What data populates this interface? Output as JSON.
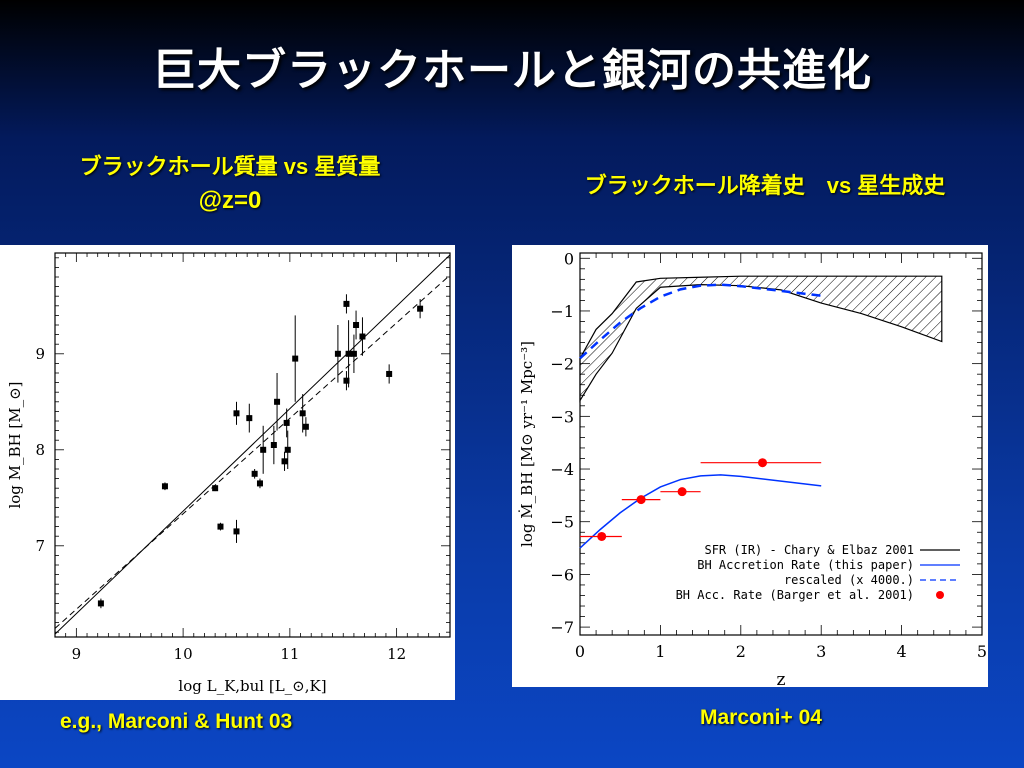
{
  "slide": {
    "title": "巨大ブラックホールと銀河の共進化",
    "left_subtitle_line1": "ブラックホール質量 vs 星質量",
    "left_subtitle_line2": "@z=0",
    "right_subtitle": "ブラックホール降着史　vs 星生成史",
    "left_caption": "e.g., Marconi & Hunt 03",
    "right_caption": "Marconi+ 04"
  },
  "chart_data": [
    {
      "type": "scatter",
      "xlabel": "log L_K,bul [L_⊙,K]",
      "ylabel": "log M_BH [M_⊙]",
      "xlim": [
        8.8,
        12.5
      ],
      "ylim": [
        6.05,
        10.05
      ],
      "xticks": [
        "9",
        "10",
        "11",
        "12"
      ],
      "yticks": [
        "7",
        "8",
        "9"
      ],
      "grid": false,
      "points": [
        {
          "x": 9.23,
          "y": 6.4,
          "yerr": 0.05
        },
        {
          "x": 9.83,
          "y": 7.62,
          "yerr": 0.04
        },
        {
          "x": 10.3,
          "y": 7.6,
          "yerr": 0.03
        },
        {
          "x": 10.35,
          "y": 7.2,
          "yerr": 0.04
        },
        {
          "x": 10.5,
          "y": 8.38,
          "yerr": 0.12
        },
        {
          "x": 10.5,
          "y": 7.15,
          "yerr": 0.12
        },
        {
          "x": 10.62,
          "y": 8.33,
          "yerr": 0.15
        },
        {
          "x": 10.67,
          "y": 7.75,
          "yerr": 0.05
        },
        {
          "x": 10.72,
          "y": 7.65,
          "yerr": 0.05
        },
        {
          "x": 10.75,
          "y": 8.0,
          "yerr": 0.25
        },
        {
          "x": 10.85,
          "y": 8.05,
          "yerr": 0.2
        },
        {
          "x": 10.88,
          "y": 8.5,
          "yerr": 0.3
        },
        {
          "x": 10.95,
          "y": 7.88,
          "yerr": 0.1
        },
        {
          "x": 10.97,
          "y": 8.28,
          "yerr": 0.15
        },
        {
          "x": 10.98,
          "y": 8.0,
          "yerr": 0.2
        },
        {
          "x": 11.05,
          "y": 8.95,
          "yerr": 0.45
        },
        {
          "x": 11.12,
          "y": 8.38,
          "yerr": 0.2
        },
        {
          "x": 11.15,
          "y": 8.24,
          "yerr": 0.1
        },
        {
          "x": 11.45,
          "y": 9.0,
          "yerr": 0.3
        },
        {
          "x": 11.53,
          "y": 9.52,
          "yerr": 0.1
        },
        {
          "x": 11.53,
          "y": 8.72,
          "yerr": 0.1
        },
        {
          "x": 11.55,
          "y": 9.0,
          "yerr": 0.35
        },
        {
          "x": 11.6,
          "y": 9.0,
          "yerr": 0.2
        },
        {
          "x": 11.62,
          "y": 9.3,
          "yerr": 0.15
        },
        {
          "x": 11.68,
          "y": 9.18,
          "yerr": 0.2
        },
        {
          "x": 11.93,
          "y": 8.79,
          "yerr": 0.1
        },
        {
          "x": 12.22,
          "y": 9.47,
          "yerr": 0.1
        }
      ],
      "lines": [
        {
          "style": "solid",
          "x": [
            8.8,
            12.5
          ],
          "y": [
            6.08,
            10.03
          ]
        },
        {
          "style": "dashed",
          "x": [
            8.8,
            12.5
          ],
          "y": [
            6.14,
            9.82
          ]
        }
      ]
    },
    {
      "type": "line",
      "xlabel": "z",
      "ylabel": "log Ṁ_BH [M⊙ yr⁻¹ Mpc⁻³]",
      "xlim": [
        0,
        5
      ],
      "ylim": [
        -7.15,
        0.1
      ],
      "xticks": [
        "0",
        "1",
        "2",
        "3",
        "4",
        "5"
      ],
      "yticks": [
        "0",
        "−1",
        "−2",
        "−3",
        "−4",
        "−5",
        "−6",
        "−7"
      ],
      "series": [
        {
          "name": "SFR (IR) - Chary & Elbaz 2001",
          "style": "hatched band",
          "x": [
            0,
            0.2,
            0.4,
            0.7,
            1.0,
            1.5,
            2.0,
            2.5,
            3.0,
            3.5,
            4.0,
            4.5
          ],
          "upper": [
            -1.9,
            -1.35,
            -1.05,
            -0.45,
            -0.38,
            -0.36,
            -0.34,
            -0.34,
            -0.34,
            -0.34,
            -0.34,
            -0.34
          ],
          "lower": [
            -2.7,
            -2.2,
            -1.8,
            -0.95,
            -0.55,
            -0.5,
            -0.52,
            -0.6,
            -0.85,
            -1.05,
            -1.3,
            -1.58
          ]
        },
        {
          "name": "BH Accretion Rate (this paper)",
          "color": "#0033ff",
          "x": [
            0,
            0.25,
            0.5,
            0.75,
            1.0,
            1.25,
            1.5,
            1.75,
            2.0,
            2.5,
            3.0
          ],
          "y": [
            -5.5,
            -5.15,
            -4.83,
            -4.56,
            -4.34,
            -4.2,
            -4.13,
            -4.11,
            -4.14,
            -4.23,
            -4.32
          ]
        },
        {
          "name": "rescaled (x 4000.)",
          "style": "dashed",
          "color": "#0033ff",
          "x": [
            0,
            0.25,
            0.5,
            0.75,
            1.0,
            1.25,
            1.5,
            1.75,
            2.0,
            2.5,
            3.0
          ],
          "y": [
            -1.9,
            -1.55,
            -1.22,
            -0.95,
            -0.73,
            -0.59,
            -0.52,
            -0.5,
            -0.53,
            -0.62,
            -0.71
          ]
        },
        {
          "name": "BH Acc. Rate (Barger et al. 2001)",
          "color": "#ff0000",
          "style": "points",
          "points": [
            {
              "x": 0.27,
              "y": -5.28,
              "xlo": 0.0,
              "xhi": 0.52
            },
            {
              "x": 0.76,
              "y": -4.58,
              "xlo": 0.52,
              "xhi": 1.0
            },
            {
              "x": 1.27,
              "y": -4.43,
              "xlo": 1.0,
              "xhi": 1.5
            },
            {
              "x": 2.27,
              "y": -3.88,
              "xlo": 1.5,
              "xhi": 3.0
            }
          ]
        }
      ]
    }
  ]
}
